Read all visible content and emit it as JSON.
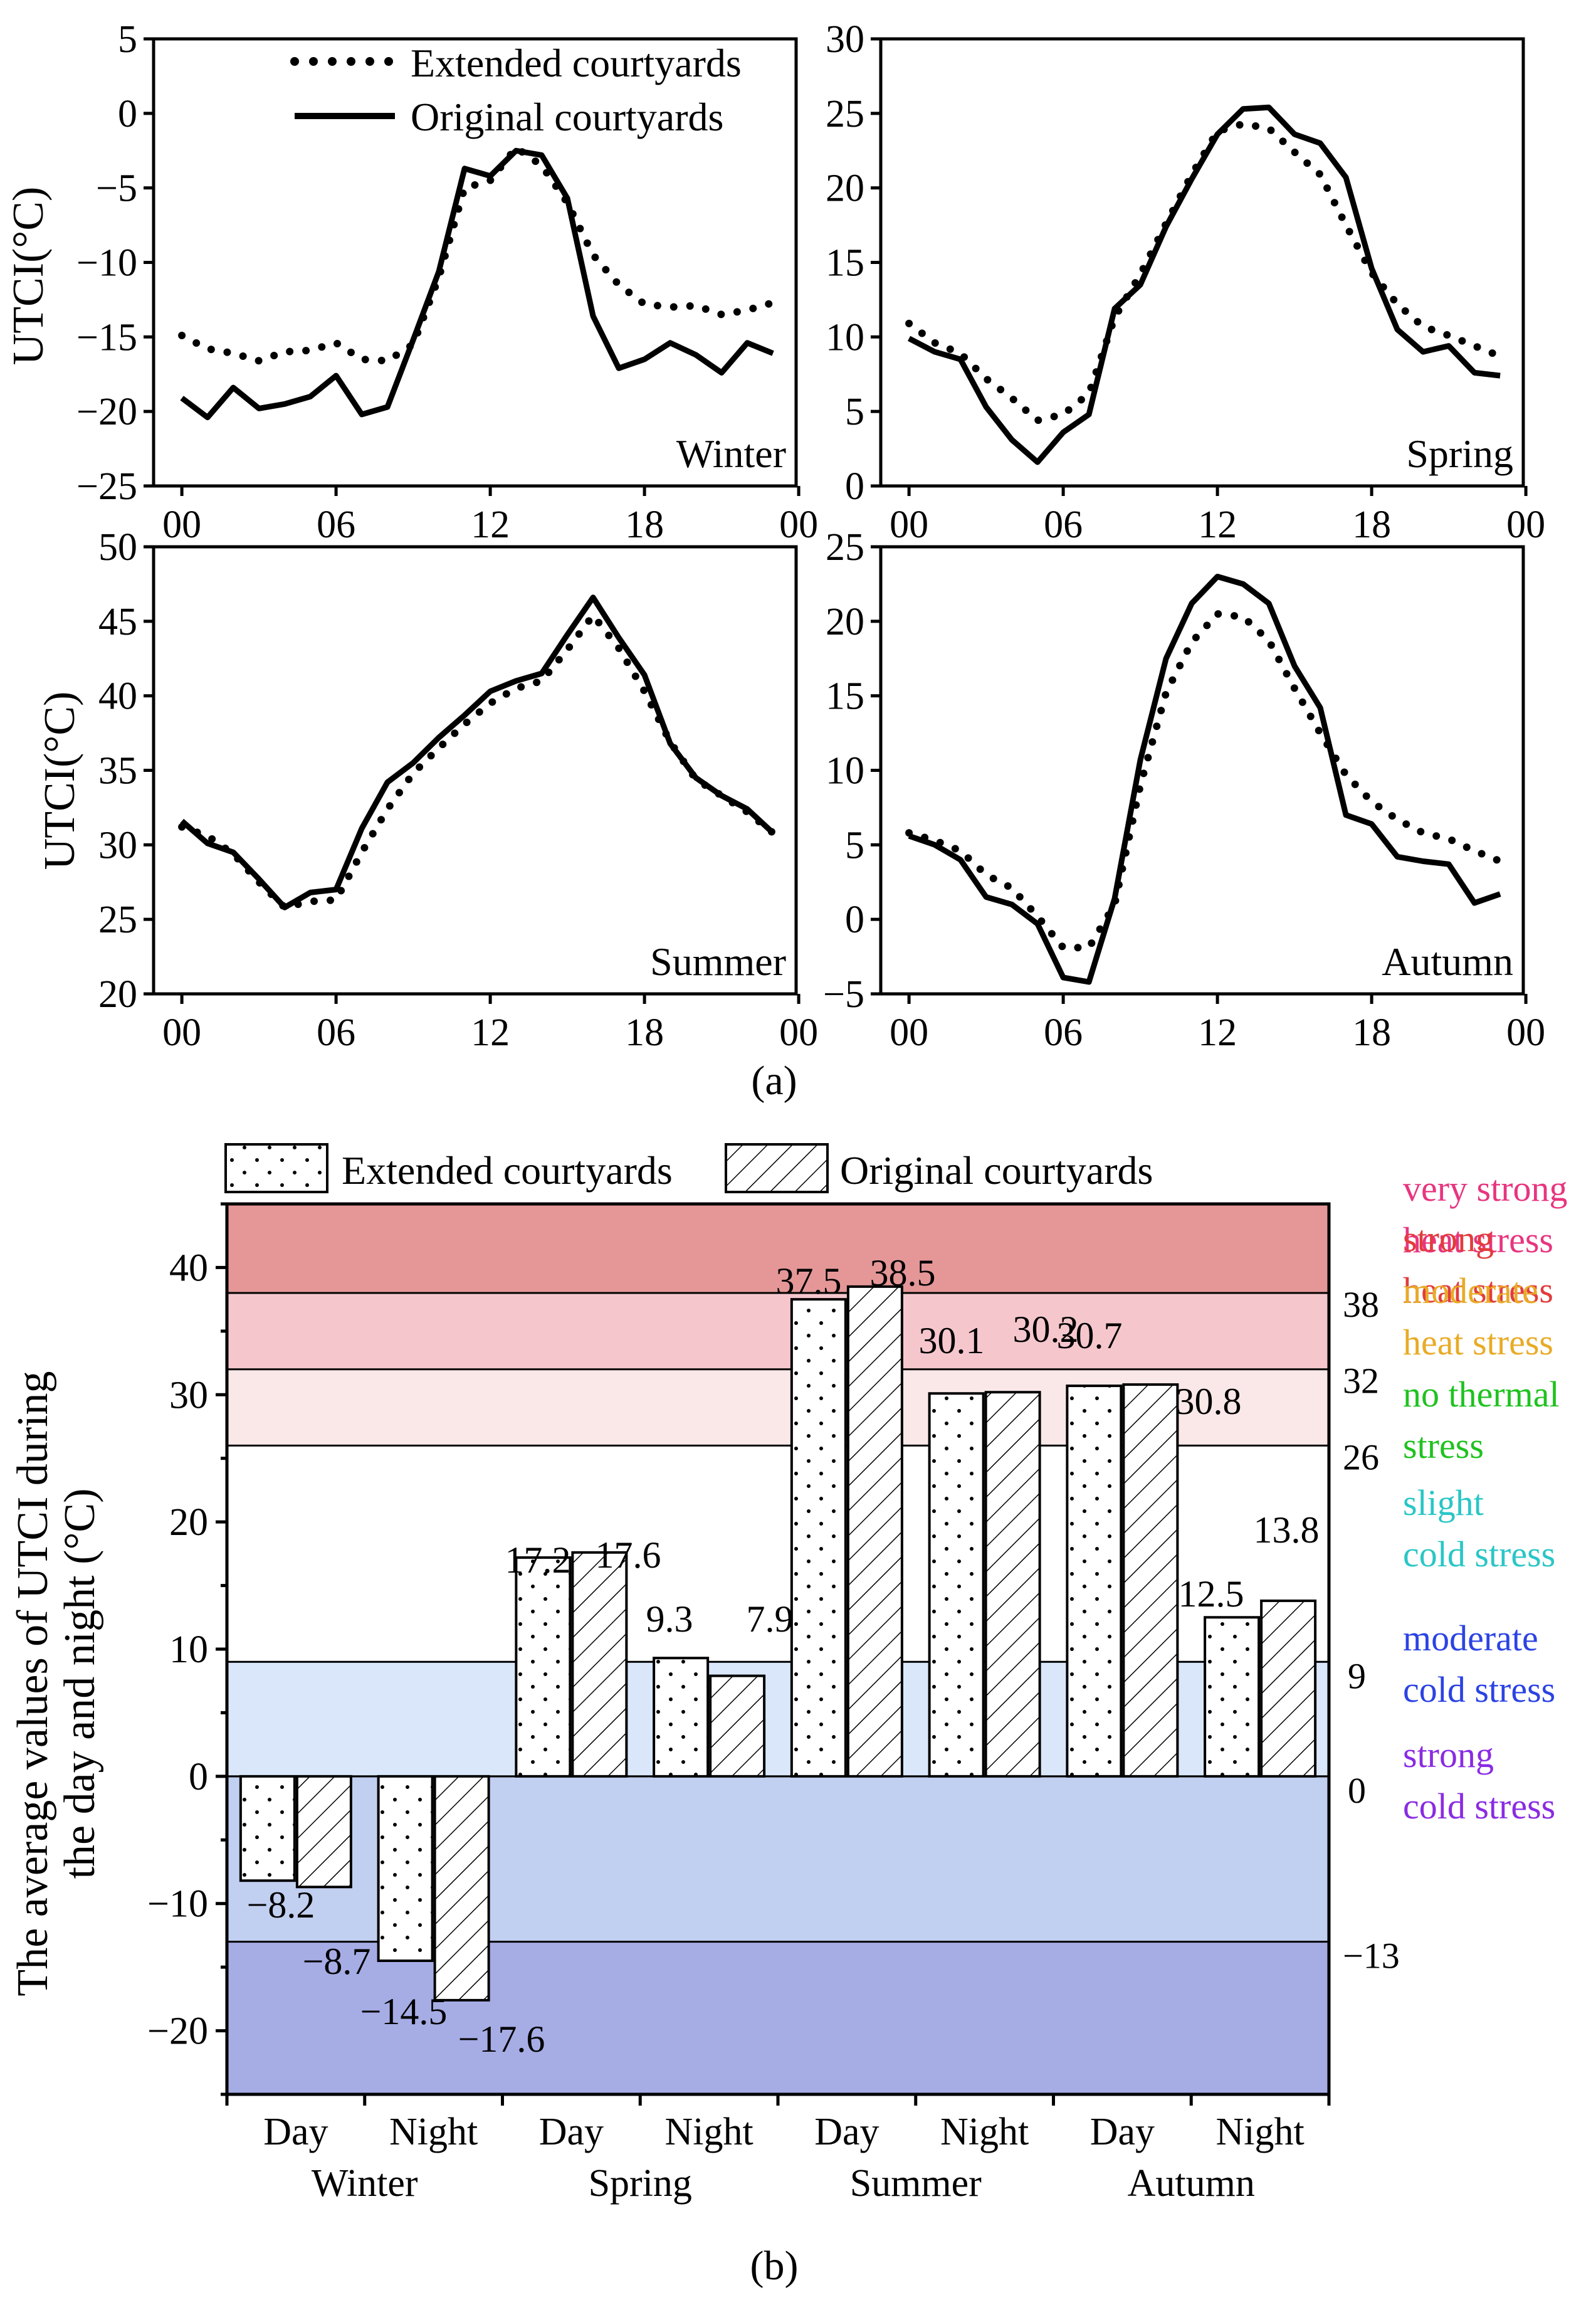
{
  "figure_a": {
    "caption": "(a)",
    "y_label": "UTCI(°C)",
    "legend": {
      "extended": "Extended courtyards",
      "original": "Original courtyards"
    },
    "x_ticks": [
      "00",
      "06",
      "12",
      "18",
      "00"
    ]
  },
  "figure_b": {
    "caption": "(b)",
    "y_label_line1": "The average values of UTCI during",
    "y_label_line2": "the day and night (°C)",
    "legend": {
      "extended": "Extended courtyards",
      "original": "Original courtyards"
    }
  },
  "colors": {
    "very_strong_heat": "#e59797",
    "strong_heat": "#f5c7cd",
    "moderate_heat": "#fae8e8",
    "slight_cold": "#dae7fb",
    "moderate_cold": "#c1cff0",
    "strong_cold": "#a6ade5",
    "label_pink": "#e8357f",
    "label_red": "#e33b3b",
    "label_yellow": "#e8ab26",
    "label_green": "#1fc21f",
    "label_cyan": "#2ac6c6",
    "label_blue": "#2b43e3",
    "label_purple": "#8a2be2"
  },
  "chart_data": [
    {
      "type": "line",
      "title": "Winter",
      "xlabel": "",
      "ylabel": "UTCI(°C)",
      "x": [
        0,
        1,
        2,
        3,
        4,
        5,
        6,
        7,
        8,
        9,
        10,
        11,
        12,
        13,
        14,
        15,
        16,
        17,
        18,
        19,
        20,
        21,
        22,
        23
      ],
      "series": [
        {
          "name": "Extended courtyards",
          "style": "dotted",
          "values": [
            -14.9,
            -15.8,
            -16.1,
            -16.6,
            -16.0,
            -15.9,
            -15.4,
            -16.5,
            -16.6,
            -15.5,
            -11.0,
            -5.0,
            -4.5,
            -2.3,
            -3.5,
            -6.0,
            -9.5,
            -11.5,
            -12.8,
            -13.0,
            -12.9,
            -13.5,
            -13.2,
            -12.7
          ]
        },
        {
          "name": "Original courtyards",
          "style": "solid",
          "values": [
            -19.1,
            -20.4,
            -18.4,
            -19.8,
            -19.5,
            -19.0,
            -17.6,
            -20.2,
            -19.7,
            -15.2,
            -10.6,
            -3.7,
            -4.2,
            -2.5,
            -2.8,
            -5.7,
            -13.6,
            -17.1,
            -16.5,
            -15.4,
            -16.2,
            -17.4,
            -15.4,
            -16.1
          ]
        }
      ],
      "ylim": [
        -25,
        5
      ],
      "yticks": [
        5,
        0,
        -5,
        -10,
        -15,
        -20,
        -25
      ],
      "xticks": [
        "00",
        "06",
        "12",
        "18",
        "00"
      ]
    },
    {
      "type": "line",
      "title": "Spring",
      "xlabel": "",
      "ylabel": "",
      "x": [
        0,
        1,
        2,
        3,
        4,
        5,
        6,
        7,
        8,
        9,
        10,
        11,
        12,
        13,
        14,
        15,
        16,
        17,
        18,
        19,
        20,
        21,
        22,
        23
      ],
      "series": [
        {
          "name": "Extended courtyards",
          "style": "dotted",
          "values": [
            10.9,
            9.6,
            8.9,
            7.2,
            5.9,
            4.4,
            4.8,
            6.2,
            11.3,
            14.2,
            17.6,
            20.9,
            23.8,
            24.3,
            24.0,
            22.4,
            20.9,
            17.5,
            14.3,
            12.2,
            10.7,
            10.1,
            9.4,
            8.7
          ]
        },
        {
          "name": "Original courtyards",
          "style": "solid",
          "values": [
            9.9,
            9.0,
            8.5,
            5.3,
            3.1,
            1.6,
            3.6,
            4.8,
            11.9,
            13.5,
            17.4,
            20.6,
            23.6,
            25.3,
            25.4,
            23.6,
            23.0,
            20.7,
            14.6,
            10.5,
            9.0,
            9.4,
            7.6,
            7.4
          ]
        }
      ],
      "ylim": [
        0,
        30
      ],
      "yticks": [
        30,
        25,
        20,
        15,
        10,
        5,
        0
      ],
      "xticks": [
        "00",
        "06",
        "12",
        "18",
        "00"
      ]
    },
    {
      "type": "line",
      "title": "Summer",
      "xlabel": "",
      "ylabel": "UTCI(°C)",
      "x": [
        0,
        1,
        2,
        3,
        4,
        5,
        6,
        7,
        8,
        9,
        10,
        11,
        12,
        13,
        14,
        15,
        16,
        17,
        18,
        19,
        20,
        21,
        22,
        23
      ],
      "series": [
        {
          "name": "Extended courtyards",
          "style": "dotted",
          "values": [
            31.2,
            30.6,
            29.4,
            27.5,
            25.8,
            26.2,
            26.3,
            29.5,
            32.4,
            34.8,
            36.5,
            38.1,
            39.5,
            40.5,
            41.0,
            43.1,
            45.4,
            43.2,
            40.3,
            36.9,
            34.4,
            33.3,
            32.2,
            30.8
          ]
        },
        {
          "name": "Original courtyards",
          "style": "solid",
          "values": [
            31.6,
            30.1,
            29.5,
            27.7,
            25.8,
            26.8,
            27.0,
            31.1,
            34.2,
            35.5,
            37.2,
            38.7,
            40.3,
            41.0,
            41.5,
            44.1,
            46.6,
            43.9,
            41.4,
            36.8,
            34.5,
            33.3,
            32.4,
            30.8
          ]
        }
      ],
      "ylim": [
        20,
        50
      ],
      "yticks": [
        50,
        45,
        40,
        35,
        30,
        25,
        20
      ],
      "xticks": [
        "00",
        "06",
        "12",
        "18",
        "00"
      ]
    },
    {
      "type": "line",
      "title": "Autumn",
      "xlabel": "",
      "ylabel": "",
      "x": [
        0,
        1,
        2,
        3,
        4,
        5,
        6,
        7,
        8,
        9,
        10,
        11,
        12,
        13,
        14,
        15,
        16,
        17,
        18,
        19,
        20,
        21,
        22,
        23
      ],
      "series": [
        {
          "name": "Extended courtyards",
          "style": "dotted",
          "values": [
            5.8,
            5.3,
            4.6,
            3.0,
            2.1,
            0.2,
            -1.9,
            -1.9,
            1.0,
            9.0,
            15.2,
            18.6,
            20.5,
            20.3,
            18.7,
            15.5,
            12.5,
            9.7,
            7.9,
            6.7,
            5.8,
            5.4,
            4.6,
            3.9
          ]
        },
        {
          "name": "Original courtyards",
          "style": "solid",
          "values": [
            5.6,
            5.0,
            4.0,
            1.5,
            1.0,
            -0.3,
            -3.9,
            -4.2,
            1.4,
            10.7,
            17.5,
            21.2,
            23.0,
            22.5,
            21.2,
            17.0,
            14.2,
            7.0,
            6.4,
            4.2,
            3.9,
            3.7,
            1.1,
            1.7
          ]
        }
      ],
      "ylim": [
        -5,
        25
      ],
      "yticks": [
        25,
        20,
        15,
        10,
        5,
        0,
        -5
      ],
      "xticks": [
        "00",
        "06",
        "12",
        "18",
        "00"
      ]
    },
    {
      "type": "bar",
      "title": "",
      "xlabel": "",
      "ylabel": "The average values of UTCI during the day and night (°C)",
      "categories": [
        "Day",
        "Night",
        "Day",
        "Night",
        "Day",
        "Night",
        "Day",
        "Night"
      ],
      "groups": [
        "Winter",
        "Spring",
        "Summer",
        "Autumn"
      ],
      "series": [
        {
          "name": "Extended courtyards",
          "pattern": "dots",
          "values": [
            -8.2,
            -14.5,
            17.2,
            9.3,
            37.5,
            30.1,
            30.7,
            12.5
          ]
        },
        {
          "name": "Original courtyards",
          "pattern": "hatch",
          "values": [
            -8.7,
            -17.6,
            17.6,
            7.9,
            38.5,
            30.2,
            30.8,
            13.8
          ]
        }
      ],
      "value_labels": [
        "-8.2",
        "-8.7",
        "-14.5",
        "-17.6",
        "17.2",
        "17.6",
        "9.3",
        "7.9",
        "37.5",
        "38.5",
        "30.1",
        "30.2",
        "30.7",
        "30.8",
        "12.5",
        "13.8"
      ],
      "ylim": [
        -25,
        45
      ],
      "yticks": [
        40,
        30,
        20,
        10,
        0,
        -10,
        -20
      ],
      "threshold_labels": [
        "38",
        "32",
        "26",
        "9",
        "0",
        "−13"
      ],
      "zones": [
        {
          "lower": 38,
          "upper": 45,
          "line1": "very strong",
          "line2": "heat stress"
        },
        {
          "lower": 32,
          "upper": 38,
          "line1": "strong",
          "line2": "heat stress"
        },
        {
          "lower": 26,
          "upper": 32,
          "line1": "moderate",
          "line2": "heat stress"
        },
        {
          "lower": 9,
          "upper": 26,
          "line1": "no thermal",
          "line2": "stress"
        },
        {
          "lower": 0,
          "upper": 9,
          "line1": "slight",
          "line2": "cold stress"
        },
        {
          "lower": -13,
          "upper": 0,
          "line1": "moderate",
          "line2": "cold stress"
        },
        {
          "lower": -25,
          "upper": -13,
          "line1": "strong",
          "line2": "cold stress"
        }
      ]
    }
  ]
}
